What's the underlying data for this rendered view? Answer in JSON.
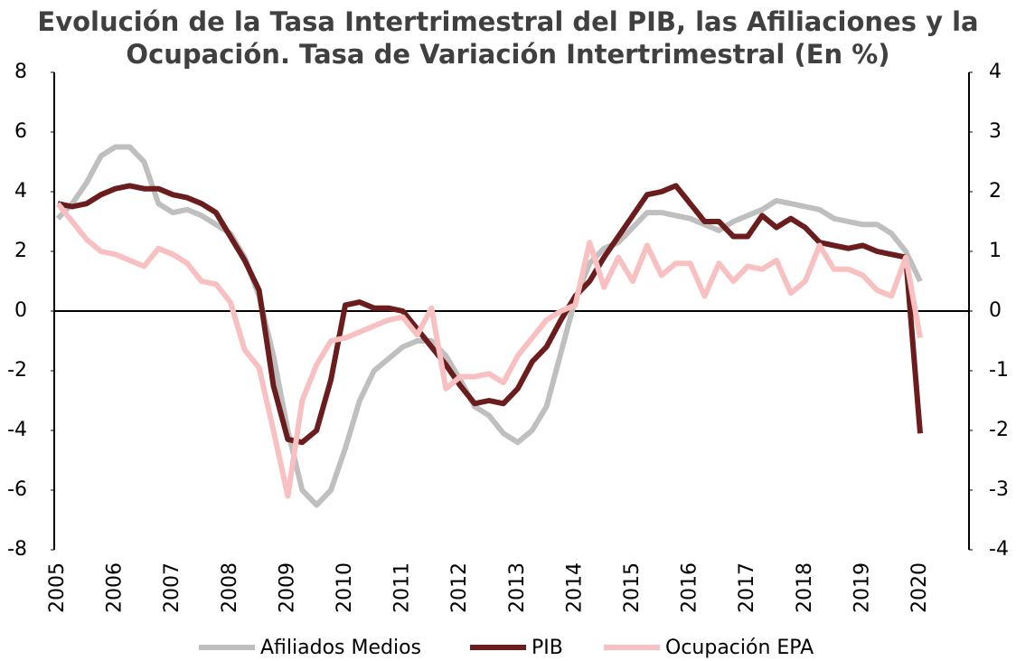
{
  "chart_data": {
    "type": "line",
    "title": "Evolución de la Tasa Intertrimestral del PIB, las Afiliaciones y la Ocupación. Tasa de Variación Intertrimestral (En %)",
    "x": [
      2005,
      2005.25,
      2005.5,
      2005.75,
      2006,
      2006.25,
      2006.5,
      2006.75,
      2007,
      2007.25,
      2007.5,
      2007.75,
      2008,
      2008.25,
      2008.5,
      2008.75,
      2009,
      2009.25,
      2009.5,
      2009.75,
      2010,
      2010.25,
      2010.5,
      2010.75,
      2011,
      2011.25,
      2011.5,
      2011.75,
      2012,
      2012.25,
      2012.5,
      2012.75,
      2013,
      2013.25,
      2013.5,
      2013.75,
      2014,
      2014.25,
      2014.5,
      2014.75,
      2015,
      2015.25,
      2015.5,
      2015.75,
      2016,
      2016.25,
      2016.5,
      2016.75,
      2017,
      2017.25,
      2017.5,
      2017.75,
      2018,
      2018.25,
      2018.5,
      2018.75,
      2019,
      2019.25,
      2019.5,
      2019.75,
      2020
    ],
    "xlim": [
      2005,
      2020
    ],
    "xticks": [
      2005,
      2006,
      2007,
      2008,
      2009,
      2010,
      2011,
      2012,
      2013,
      2014,
      2015,
      2016,
      2017,
      2018,
      2019,
      2020
    ],
    "ylim": [
      -8,
      8
    ],
    "yticks": [
      -8,
      -6,
      -4,
      -2,
      0,
      2,
      4,
      6,
      8
    ],
    "y2lim": [
      -4,
      4
    ],
    "y2ticks": [
      -4,
      -3,
      -2,
      -1,
      0,
      1,
      2,
      3,
      4
    ],
    "legend": "bottom",
    "series": [
      {
        "name": "Afiliados Medios",
        "color": "#bfbfbf",
        "axis": "y",
        "values": [
          3.1,
          3.6,
          4.3,
          5.2,
          5.5,
          5.5,
          5.0,
          3.6,
          3.3,
          3.4,
          3.2,
          2.9,
          2.6,
          1.8,
          0.5,
          -1.5,
          -4.0,
          -6.0,
          -6.5,
          -6.0,
          -4.6,
          -3.0,
          -2.0,
          -1.6,
          -1.2,
          -1.0,
          -1.0,
          -1.5,
          -2.3,
          -3.2,
          -3.5,
          -4.1,
          -4.4,
          -4.0,
          -3.2,
          -1.4,
          0.4,
          1.6,
          2.1,
          2.3,
          2.8,
          3.3,
          3.3,
          3.2,
          3.1,
          2.9,
          2.7,
          3.0,
          3.2,
          3.4,
          3.7,
          3.6,
          3.5,
          3.4,
          3.1,
          3.0,
          2.9,
          2.9,
          2.6,
          2.0,
          1.0
        ]
      },
      {
        "name": "PIB",
        "color": "#6b1c1c",
        "axis": "y",
        "values": [
          3.6,
          3.5,
          3.6,
          3.9,
          4.1,
          4.2,
          4.1,
          4.1,
          3.9,
          3.8,
          3.6,
          3.3,
          2.5,
          1.7,
          0.7,
          -2.5,
          -4.3,
          -4.4,
          -4.0,
          -2.3,
          0.2,
          0.3,
          0.1,
          0.1,
          0.0,
          -0.6,
          -1.2,
          -1.8,
          -2.5,
          -3.1,
          -3.0,
          -3.1,
          -2.6,
          -1.7,
          -1.2,
          -0.3,
          0.5,
          1.0,
          1.8,
          2.5,
          3.2,
          3.9,
          4.0,
          4.2,
          3.6,
          3.0,
          3.0,
          2.5,
          2.5,
          3.2,
          2.8,
          3.1,
          2.8,
          2.3,
          2.2,
          2.1,
          2.2,
          2.0,
          1.9,
          1.8,
          -4.1
        ]
      },
      {
        "name": "Ocupación EPA",
        "color": "#f8c0c0",
        "axis": "y2",
        "values": [
          1.8,
          1.5,
          1.2,
          1.0,
          0.95,
          0.85,
          0.75,
          1.05,
          0.95,
          0.8,
          0.5,
          0.45,
          0.15,
          -0.65,
          -0.95,
          -2.0,
          -3.1,
          -1.5,
          -0.9,
          -0.5,
          -0.45,
          -0.35,
          -0.25,
          -0.15,
          -0.1,
          -0.4,
          0.05,
          -1.3,
          -1.1,
          -1.1,
          -1.05,
          -1.2,
          -0.75,
          -0.45,
          -0.15,
          0.0,
          0.1,
          1.15,
          0.4,
          0.9,
          0.5,
          1.1,
          0.6,
          0.8,
          0.8,
          0.25,
          0.8,
          0.5,
          0.75,
          0.7,
          0.85,
          0.3,
          0.5,
          1.1,
          0.7,
          0.7,
          0.6,
          0.35,
          0.25,
          0.9,
          -0.45
        ]
      }
    ]
  }
}
